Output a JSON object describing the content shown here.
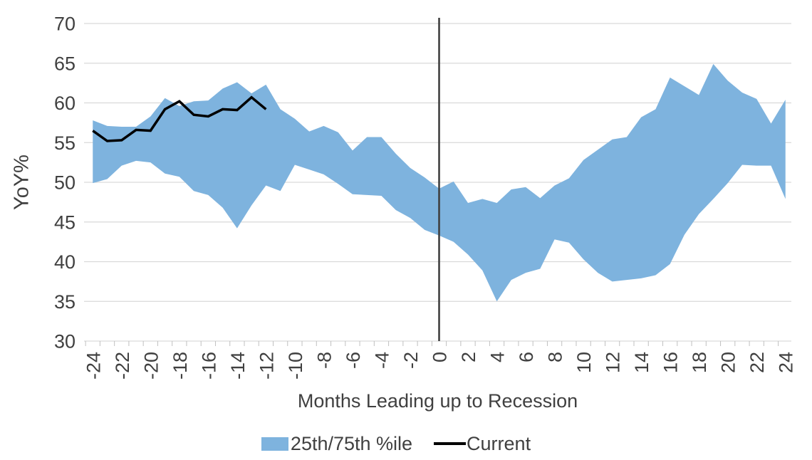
{
  "chart_data": {
    "type": "area",
    "title": "",
    "xlabel": "Months Leading up to Recession",
    "ylabel": "YoY%",
    "ylim": [
      30,
      70
    ],
    "ytick_step": 5,
    "xtick_label_step": 2,
    "grid": "horizontal",
    "legend_position": "bottom",
    "vline_x": 0,
    "x": [
      -24,
      -23,
      -22,
      -21,
      -20,
      -19,
      -18,
      -17,
      -16,
      -15,
      -14,
      -13,
      -12,
      -11,
      -10,
      -9,
      -8,
      -7,
      -6,
      -5,
      -4,
      -3,
      -2,
      -1,
      0,
      1,
      2,
      3,
      4,
      5,
      6,
      7,
      8,
      9,
      10,
      11,
      12,
      13,
      14,
      15,
      16,
      17,
      18,
      19,
      20,
      21,
      22,
      23,
      24
    ],
    "series": [
      {
        "name": "25th/75th %ile",
        "style": "band",
        "color": "#7EB3DE",
        "upper": [
          57.8,
          57.1,
          57.0,
          57.0,
          58.3,
          60.6,
          59.6,
          60.2,
          60.3,
          61.8,
          62.6,
          61.2,
          62.3,
          59.2,
          58.0,
          56.4,
          57.1,
          56.3,
          54.0,
          55.7,
          55.7,
          53.6,
          51.8,
          50.6,
          49.2,
          50.1,
          47.4,
          47.9,
          47.4,
          49.1,
          49.4,
          48.0,
          49.6,
          50.5,
          52.8,
          54.1,
          55.4,
          55.7,
          58.2,
          59.2,
          63.2,
          62.1,
          61.0,
          64.9,
          62.8,
          61.3,
          60.5,
          57.4,
          60.4
        ],
        "lower": [
          49.9,
          50.4,
          52.1,
          52.7,
          52.5,
          51.1,
          50.7,
          48.9,
          48.4,
          46.8,
          44.2,
          47.1,
          49.6,
          48.9,
          52.2,
          51.6,
          51.0,
          49.8,
          48.5,
          48.4,
          48.3,
          46.5,
          45.5,
          44.0,
          43.3,
          42.5,
          40.9,
          38.9,
          35.0,
          37.7,
          38.6,
          39.1,
          42.8,
          42.4,
          40.3,
          38.6,
          37.5,
          37.7,
          37.9,
          38.3,
          39.7,
          43.4,
          46.0,
          47.9,
          49.9,
          52.2,
          52.1,
          52.1,
          47.9
        ]
      },
      {
        "name": "Current",
        "style": "line",
        "color": "#000000",
        "x": [
          -24,
          -23,
          -22,
          -21,
          -20,
          -19,
          -18,
          -17,
          -16,
          -15,
          -14,
          -13,
          -12
        ],
        "values": [
          56.5,
          55.2,
          55.3,
          56.6,
          56.5,
          59.2,
          60.2,
          58.5,
          58.3,
          59.2,
          59.1,
          60.7,
          59.2
        ]
      }
    ],
    "colors": {
      "grid": "#D9D9D9",
      "tick": "#C0C0C0",
      "axis_text": "#404040",
      "vline": "#404040",
      "background": "#FFFFFF"
    }
  }
}
